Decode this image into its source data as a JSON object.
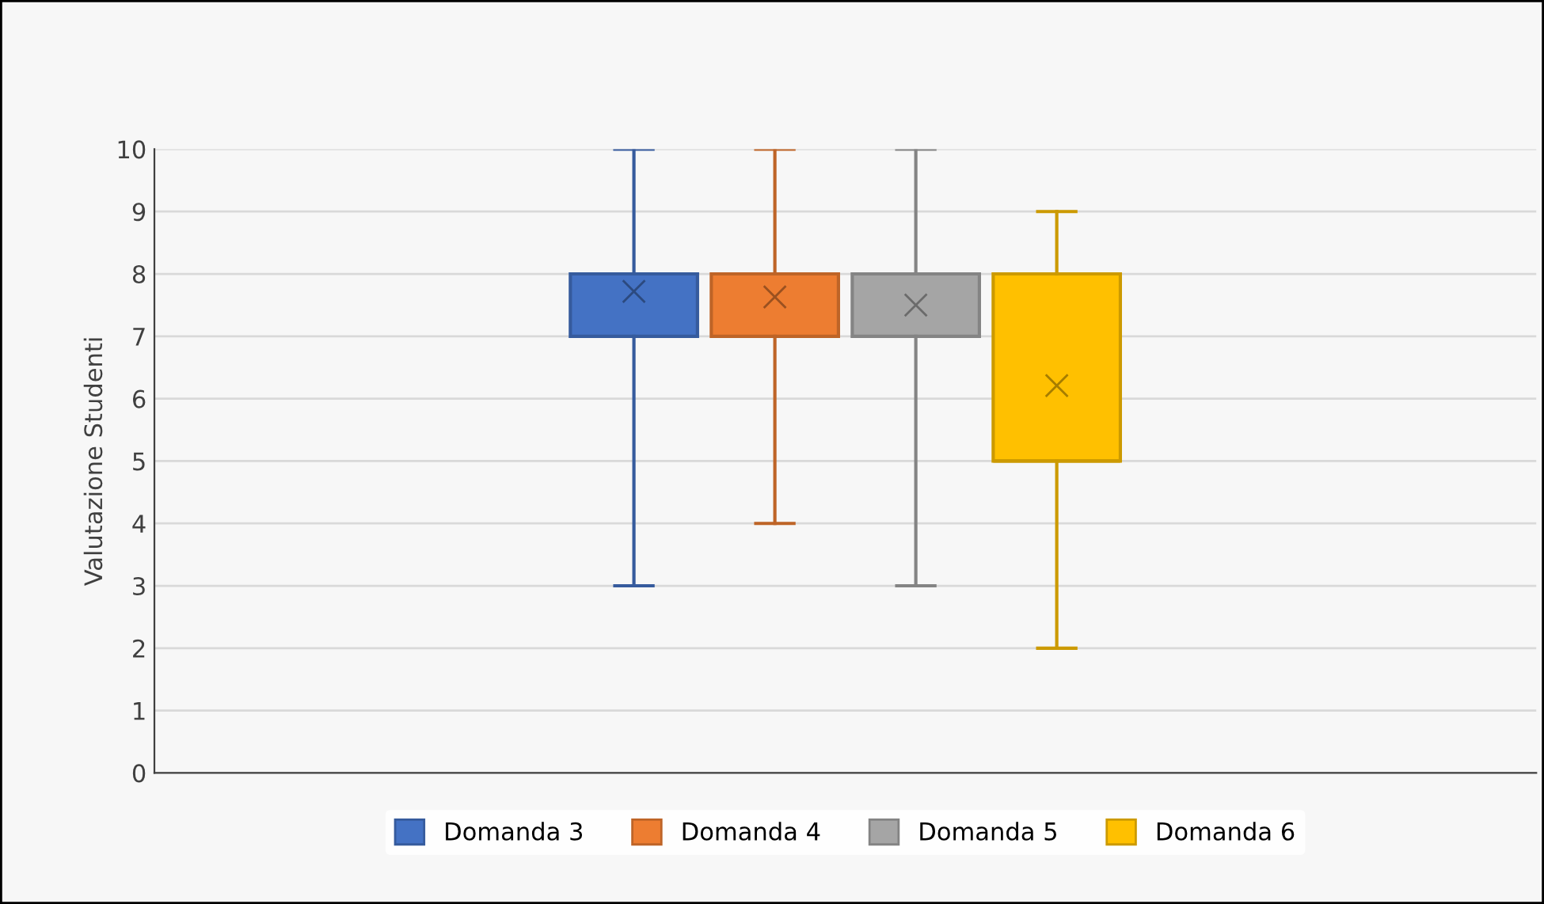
{
  "chart_data": {
    "type": "box",
    "ylabel": "Valutazione Studenti",
    "categories": [
      null
    ],
    "ylim": [
      0,
      10
    ],
    "yticks": [
      0,
      1,
      2,
      3,
      4,
      5,
      6,
      7,
      8,
      9,
      10
    ],
    "grid": "y",
    "legend": "bottom",
    "series": [
      {
        "name": "Domanda 3",
        "color": "#4472c4",
        "boxes": [
          {
            "low": 3,
            "q1": 7,
            "median": 8,
            "q3": 8,
            "high": 10,
            "mean": 7.72
          }
        ]
      },
      {
        "name": "Domanda 4",
        "color": "#ed7d31",
        "boxes": [
          {
            "low": 4,
            "q1": 7,
            "median": 8,
            "q3": 8,
            "high": 10,
            "mean": 7.63
          }
        ]
      },
      {
        "name": "Domanda 5",
        "color": "#a5a5a5",
        "boxes": [
          {
            "low": 3,
            "q1": 7,
            "median": 8,
            "q3": 8,
            "high": 10,
            "mean": 7.5
          }
        ]
      },
      {
        "name": "Domanda 6",
        "color": "#ffc000",
        "boxes": [
          {
            "low": 2,
            "q1": 5,
            "median": 5,
            "q3": 8,
            "high": 9,
            "mean": 6.21
          }
        ]
      }
    ]
  }
}
